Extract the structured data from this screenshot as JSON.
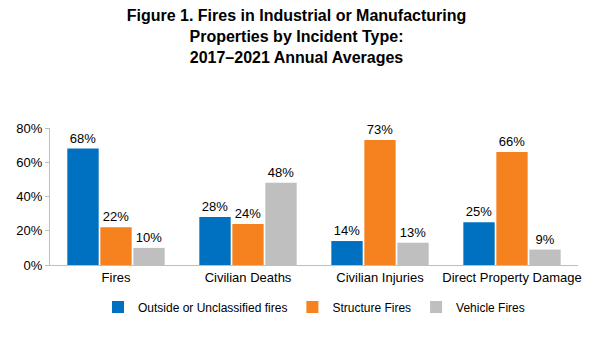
{
  "chart_data": {
    "type": "bar",
    "title": "Figure 1. Fires in Industrial or Manufacturing\nProperties by Incident Type:\n2017–2021 Annual Averages",
    "categories": [
      "Fires",
      "Civilian Deaths",
      "Civilian Injuries",
      "Direct Property Damage"
    ],
    "series": [
      {
        "name": "Outside or Unclassified fires",
        "color": "#0070c0",
        "values": [
          68,
          28,
          14,
          25
        ],
        "value_labels": [
          "68%",
          "28%",
          "14%",
          "25%"
        ]
      },
      {
        "name": "Structure Fires",
        "color": "#f5821f",
        "values": [
          22,
          24,
          73,
          66
        ],
        "value_labels": [
          "22%",
          "24%",
          "73%",
          "66%"
        ]
      },
      {
        "name": "Vehicle Fires",
        "color": "#bfbfbf",
        "values": [
          10,
          48,
          13,
          9
        ],
        "value_labels": [
          "10%",
          "48%",
          "13%",
          "9%"
        ]
      }
    ],
    "ylim": [
      0,
      80
    ],
    "yticks": [
      {
        "value": 0,
        "label": "0%"
      },
      {
        "value": 20,
        "label": "20%"
      },
      {
        "value": 40,
        "label": "40%"
      },
      {
        "value": 60,
        "label": "60%"
      },
      {
        "value": 80,
        "label": "80%"
      }
    ],
    "grid": false,
    "legend": "bottom",
    "data_labels": true
  }
}
